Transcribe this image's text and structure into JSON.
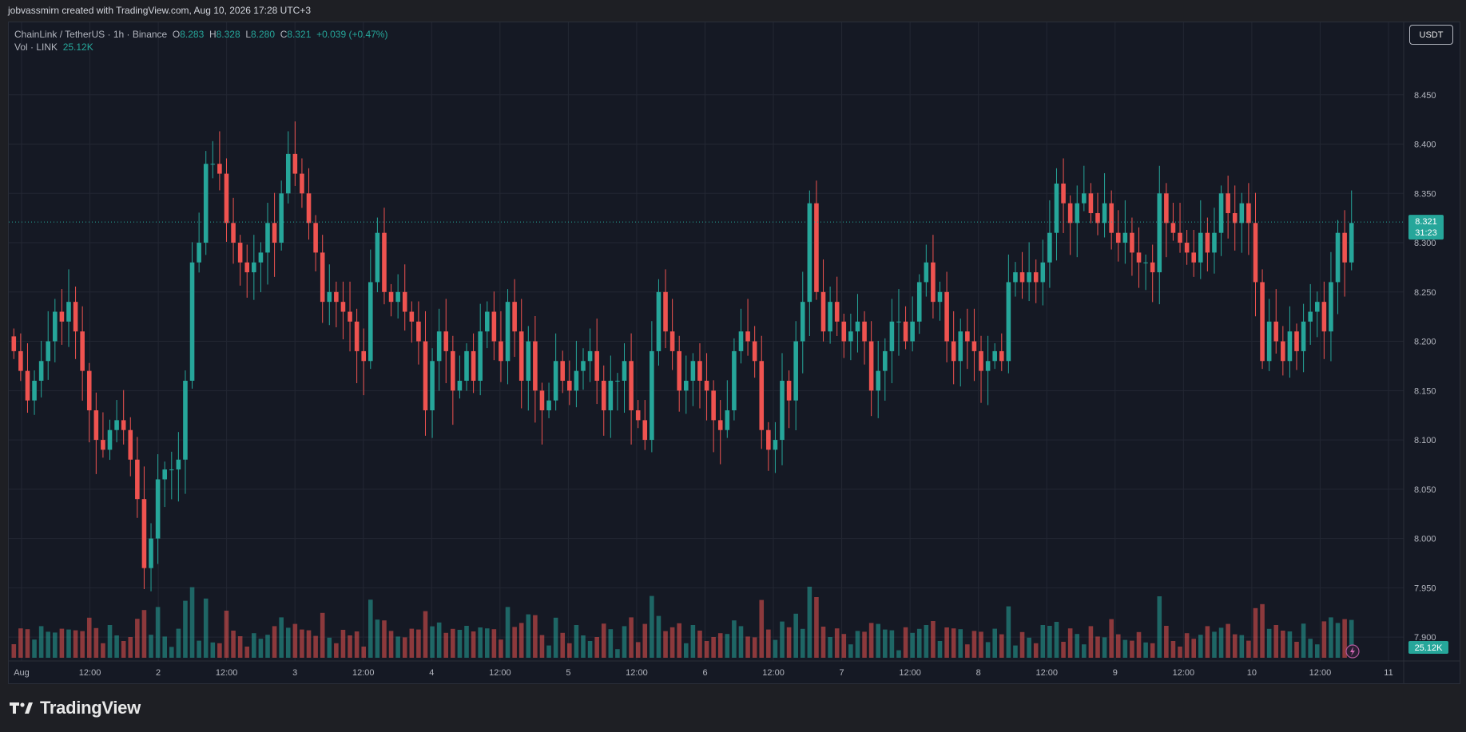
{
  "header": {
    "credit": "jobvassmirn created with TradingView.com, Aug 10, 2026 17:28 UTC+3"
  },
  "legend": {
    "symbol": "ChainLink / TetherUS · 1h · Binance",
    "o_label": "O",
    "o_value": "8.283",
    "h_label": "H",
    "h_value": "8.328",
    "l_label": "L",
    "l_value": "8.280",
    "c_label": "C",
    "c_value": "8.321",
    "change": "+0.039 (+0.47%)",
    "vol_label": "Vol · LINK",
    "vol_value": "25.12K"
  },
  "currency_button": "USDT",
  "price_tag": {
    "price": "8.321",
    "countdown": "31:23"
  },
  "volume_tag": "25.12K",
  "brand": {
    "name": "TradingView"
  },
  "colors": {
    "up": "#26a69a",
    "down": "#ef5350",
    "background": "#151924",
    "grid": "#232733"
  },
  "chart_data": {
    "type": "candlestick",
    "timeframe": "1h",
    "y_ticks": [
      "8.450",
      "8.400",
      "8.350",
      "8.300",
      "8.250",
      "8.200",
      "8.150",
      "8.100",
      "8.050",
      "8.000",
      "7.950",
      "7.900"
    ],
    "y_range": [
      7.875,
      8.5
    ],
    "x_labels": [
      "Aug",
      "12:00",
      "2",
      "12:00",
      "3",
      "12:00",
      "4",
      "12:00",
      "5",
      "12:00",
      "6",
      "12:00",
      "7",
      "12:00",
      "8",
      "12:00",
      "9",
      "12:00",
      "10",
      "12:00",
      "11"
    ],
    "last_price": 8.321,
    "candles_close": [
      8.19,
      8.17,
      8.14,
      8.16,
      8.18,
      8.2,
      8.23,
      8.22,
      8.24,
      8.21,
      8.17,
      8.13,
      8.1,
      8.09,
      8.11,
      8.12,
      8.11,
      8.08,
      8.04,
      7.97,
      8.0,
      8.06,
      8.07,
      8.07,
      8.08,
      8.16,
      8.28,
      8.3,
      8.38,
      8.38,
      8.37,
      8.32,
      8.3,
      8.28,
      8.27,
      8.28,
      8.29,
      8.32,
      8.3,
      8.35,
      8.39,
      8.37,
      8.35,
      8.32,
      8.29,
      8.24,
      8.25,
      8.24,
      8.23,
      8.22,
      8.19,
      8.18,
      8.26,
      8.31,
      8.25,
      8.24,
      8.25,
      8.23,
      8.22,
      8.2,
      8.13,
      8.18,
      8.21,
      8.19,
      8.15,
      8.16,
      8.19,
      8.16,
      8.21,
      8.23,
      8.2,
      8.18,
      8.24,
      8.21,
      8.16,
      8.2,
      8.15,
      8.13,
      8.14,
      8.18,
      8.16,
      8.15,
      8.17,
      8.18,
      8.19,
      8.16,
      8.13,
      8.16,
      8.16,
      8.18,
      8.13,
      8.12,
      8.1,
      8.19,
      8.25,
      8.21,
      8.19,
      8.15,
      8.16,
      8.18,
      8.16,
      8.15,
      8.12,
      8.11,
      8.13,
      8.19,
      8.21,
      8.2,
      8.18,
      8.11,
      8.09,
      8.1,
      8.16,
      8.14,
      8.2,
      8.24,
      8.34,
      8.25,
      8.21,
      8.24,
      8.22,
      8.2,
      8.21,
      8.22,
      8.2,
      8.15,
      8.17,
      8.19,
      8.22,
      8.22,
      8.2,
      8.22,
      8.26,
      8.28,
      8.24,
      8.25,
      8.2,
      8.18,
      8.21,
      8.2,
      8.19,
      8.17,
      8.18,
      8.19,
      8.18,
      8.26,
      8.27,
      8.26,
      8.27,
      8.26,
      8.28,
      8.31,
      8.36,
      8.34,
      8.32,
      8.34,
      8.35,
      8.33,
      8.32,
      8.34,
      8.31,
      8.3,
      8.31,
      8.29,
      8.28,
      8.28,
      8.27,
      8.35,
      8.32,
      8.31,
      8.3,
      8.29,
      8.28,
      8.31,
      8.29,
      8.31,
      8.35,
      8.33,
      8.32,
      8.34,
      8.32,
      8.26,
      8.18,
      8.22,
      8.2,
      8.18,
      8.21,
      8.19,
      8.22,
      8.23,
      8.24,
      8.21,
      8.26,
      8.31,
      8.28,
      8.32
    ]
  }
}
